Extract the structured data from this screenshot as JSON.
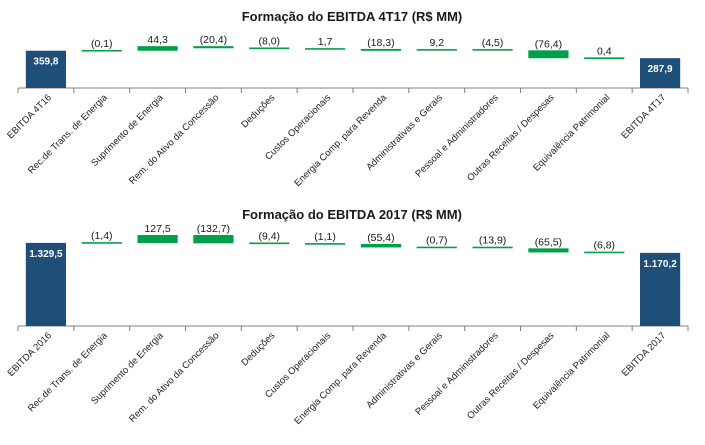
{
  "chart_data": [
    {
      "type": "bar",
      "subtype": "waterfall",
      "title": "Formação do EBITDA 4T17 (R$ MM)",
      "categories": [
        "EBITDA 4T16",
        "Rec.de Trans. de Energia",
        "Suprimento de Energia",
        "Rem. do Ativo da Concessão",
        "Deduções",
        "Custos Operacionais",
        "Energia Comp. para Revenda",
        "Administrativas e Gerais",
        "Pessoal e Administradores",
        "Outras Receitas / Despesas",
        "Equivalência Patrimonial",
        "EBITDA 4T17"
      ],
      "values": [
        359.8,
        -0.1,
        44.3,
        -20.4,
        -8.0,
        1.7,
        -18.3,
        9.2,
        -4.5,
        -76.4,
        0.4,
        287.9
      ],
      "labels": [
        "359,8",
        "(0,1)",
        "44,3",
        "(20,4)",
        "(8,0)",
        "1,7",
        "(18,3)",
        "9,2",
        "(4,5)",
        "(76,4)",
        "0,4",
        "287,9"
      ],
      "kinds": [
        "total",
        "delta",
        "delta",
        "delta",
        "delta",
        "delta",
        "delta",
        "delta",
        "delta",
        "delta",
        "delta",
        "total"
      ],
      "scale_max": 560
    },
    {
      "type": "bar",
      "subtype": "waterfall",
      "title": "Formação do EBITDA 2017  (R$ MM)",
      "categories": [
        "EBITDA 2016",
        "Rec.de Trans. de Energia",
        "Suprimento de Energia",
        "Rem. do Ativo da Concessão",
        "Deduções",
        "Custos Operacionais",
        "Energia Comp. para Revenda",
        "Administrativas e Gerais",
        "Pessoal e Administradores",
        "Outras Receitas / Despesas",
        "Equivalência Patrimonial",
        "EBITDA 2017"
      ],
      "values": [
        1329.5,
        -1.4,
        127.5,
        -132.7,
        -9.4,
        -1.1,
        -55.4,
        -0.7,
        -13.9,
        -65.5,
        -6.8,
        1170.2
      ],
      "labels": [
        "1.329,5",
        "(1,4)",
        "127,5",
        "(132,7)",
        "(9,4)",
        "(1,1)",
        "(55,4)",
        "(0,7)",
        "(13,9)",
        "(65,5)",
        "(6,8)",
        "1.170,2"
      ],
      "kinds": [
        "total",
        "delta",
        "delta",
        "delta",
        "delta",
        "delta",
        "delta",
        "delta",
        "delta",
        "delta",
        "delta",
        "total"
      ],
      "scale_max": 1600
    }
  ],
  "colors": {
    "total": "#1f4e79",
    "increase": "#00a04b",
    "decrease": "#00a04b",
    "axis": "#808080",
    "connector": "#00a04b"
  }
}
